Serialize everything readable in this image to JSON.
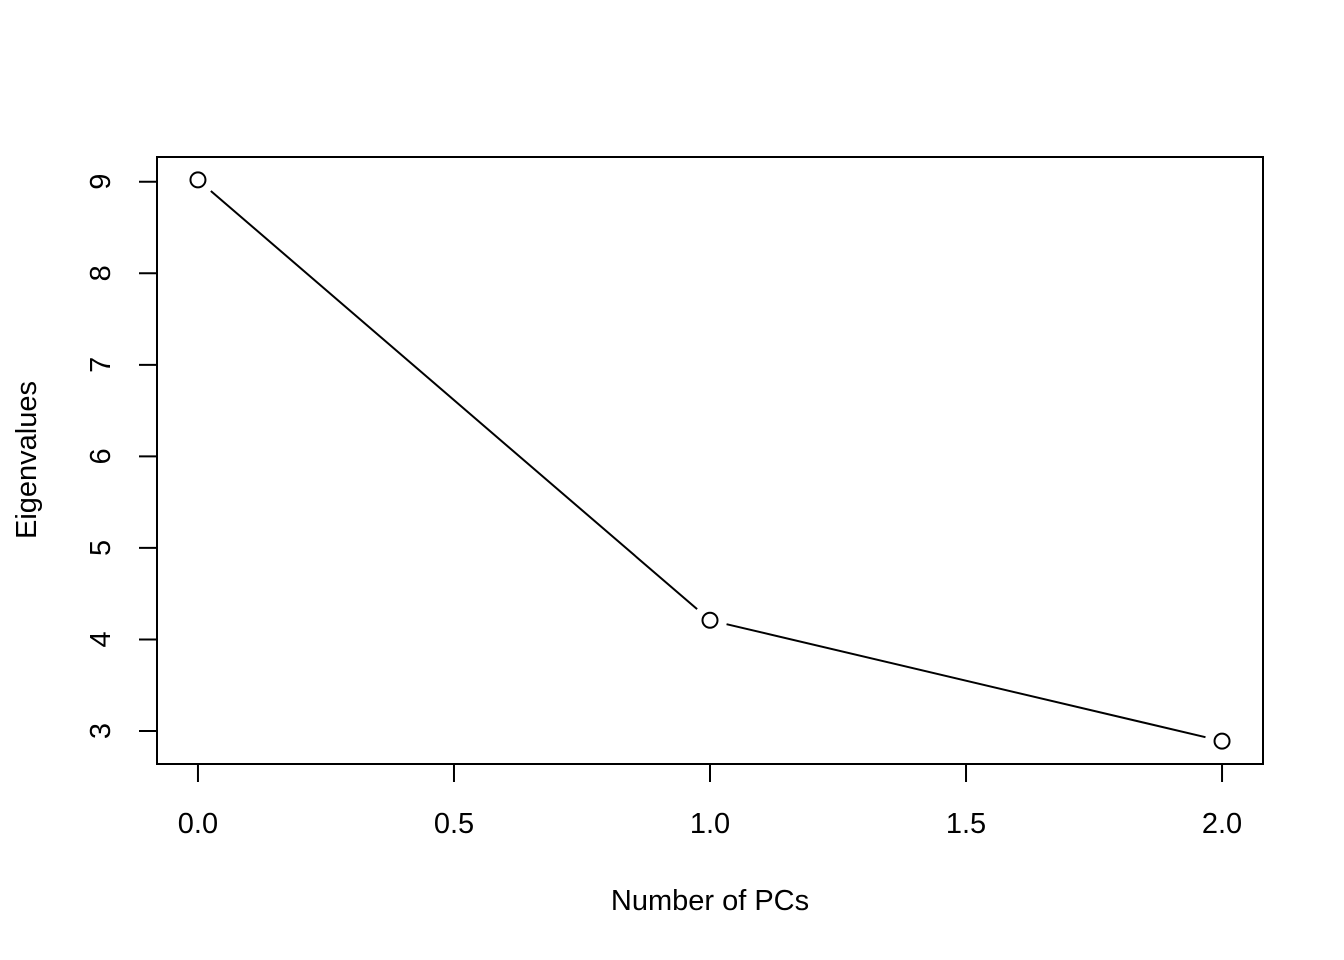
{
  "chart_data": {
    "type": "line",
    "title": "",
    "xlabel": "Number of PCs",
    "ylabel": "Eigenvalues",
    "x": [
      0,
      1,
      2
    ],
    "series": [
      {
        "values": [
          9.02,
          4.21,
          2.89
        ]
      }
    ],
    "xlim": [
      -0.08,
      2.08
    ],
    "ylim": [
      2.64,
      9.27
    ],
    "xticks": [
      0,
      0.5,
      1,
      1.5,
      2
    ],
    "xtick_labels": [
      "0.0",
      "0.5",
      "1.0",
      "1.5",
      "2.0"
    ],
    "yticks": [
      3,
      4,
      5,
      6,
      7,
      8,
      9
    ],
    "ytick_labels": [
      "3",
      "4",
      "5",
      "6",
      "7",
      "8",
      "9"
    ],
    "marker": "open-circle",
    "grid": false,
    "line_color": "#000000"
  }
}
